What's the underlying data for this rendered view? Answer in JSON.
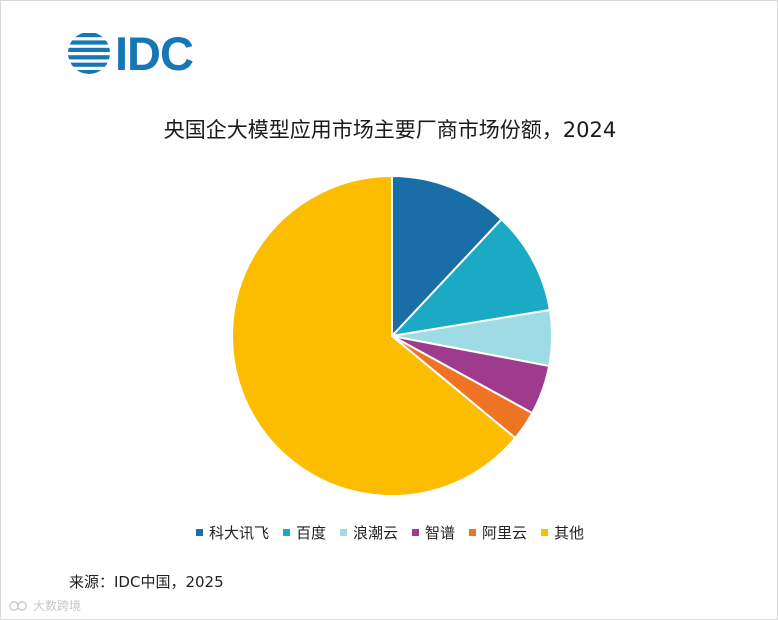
{
  "logo": {
    "text": "IDC"
  },
  "chart_data": {
    "type": "pie",
    "title": "央国企大模型应用市场主要厂商市场份额，2024",
    "categories": [
      "科大讯飞",
      "百度",
      "浪潮云",
      "智谱",
      "阿里云",
      "其他"
    ],
    "values": [
      12.0,
      10.4,
      5.6,
      5.0,
      3.0,
      64.0
    ],
    "colors": [
      "#1a6ea8",
      "#1aaac4",
      "#9edbe4",
      "#9e3b8d",
      "#ee7424",
      "#fcbd00"
    ],
    "start_angle_deg": 0,
    "direction": "clockwise",
    "legend_position": "bottom"
  },
  "source": "来源：IDC中国，2025",
  "watermark": "大数跨境",
  "colors": {
    "brand": "#1777b6"
  }
}
